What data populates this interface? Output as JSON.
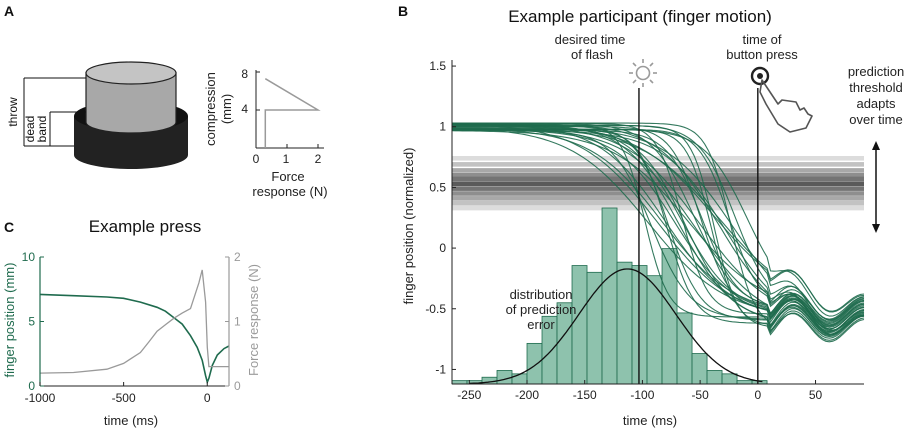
{
  "panels": {
    "a": {
      "letter": "A",
      "labels": {
        "throw": "throw",
        "dead": "dead",
        "band": "band"
      },
      "mini_chart": {
        "ylabel_line1": "compression",
        "ylabel_line2": "(mm)",
        "xlabel_line1": "Force",
        "xlabel_line2": "response (N)",
        "xticks": [
          "0",
          "1",
          "2"
        ],
        "yticks": [
          "4",
          "8"
        ]
      }
    },
    "b": {
      "letter": "B",
      "title": "Example participant (finger motion)",
      "annotations": {
        "flash_line1": "desired time",
        "flash_line2": "of flash",
        "press_line1": "time of",
        "press_line2": "button press",
        "threshold_line1": "prediction",
        "threshold_line2": "threshold",
        "threshold_line3": "adapts",
        "threshold_line4": "over time",
        "dist_line1": "distribution",
        "dist_line2": "of prediction",
        "dist_line3": "error"
      }
    },
    "c": {
      "letter": "C",
      "title": "Example press"
    }
  },
  "colors": {
    "green": "#1f6b4e",
    "hist_fill": "#8ec2ad",
    "gray": "#9a9a9a",
    "cylinder_top": "#a9a9a9",
    "cylinder_base": "#222222"
  },
  "chart_data": [
    {
      "id": "panel-a-inset",
      "type": "line",
      "xlabel": "Force response (N)",
      "ylabel": "compression (mm)",
      "xlim": [
        0,
        2
      ],
      "ylim": [
        0,
        8
      ],
      "xticks": [
        0,
        1,
        2
      ],
      "yticks": [
        4,
        8
      ],
      "series": [
        {
          "name": "force-compression",
          "x": [
            0.3,
            0.3,
            2.0,
            0.3
          ],
          "y": [
            0,
            4,
            4,
            7.3
          ]
        }
      ]
    },
    {
      "id": "panel-b",
      "type": "line",
      "title": "Example participant (finger motion)",
      "xlabel": "time (ms)",
      "ylabel": "finger position (normalized)",
      "xlim": [
        -265,
        92
      ],
      "ylim": [
        -1.12,
        1.55
      ],
      "xticks": [
        -250,
        -200,
        -150,
        -100,
        -50,
        0,
        50
      ],
      "yticks": [
        -1,
        -0.5,
        0,
        0.5,
        1,
        1.5
      ],
      "flash_time_ms": -103,
      "press_time_ms": 0,
      "thresholds": [
        0.74,
        0.69,
        0.64,
        0.6,
        0.57,
        0.53,
        0.49,
        0.45,
        0.41,
        0.37,
        0.33
      ],
      "traces": {
        "count": 30,
        "start_value": 1.0,
        "end_values": [
          -0.62,
          -0.68,
          -0.42
        ],
        "oscillation_peak_ms": 45,
        "note": "finger position traces aligned to button press"
      },
      "histogram": {
        "bin_edges": [
          -265,
          -252,
          -239,
          -226,
          -213,
          -200,
          -187,
          -174,
          -161,
          -148,
          -135,
          -122,
          -109,
          -96,
          -83,
          -70,
          -57,
          -44,
          -31,
          -18,
          -5,
          8
        ],
        "counts": [
          1,
          1,
          2,
          4,
          3,
          12,
          20,
          24,
          35,
          33,
          52,
          36,
          35,
          32,
          40,
          21,
          9,
          4,
          3,
          1,
          1
        ],
        "gaussian_mean_ms": -113,
        "gaussian_sd_ms": 42,
        "gaussian_peak": 34
      }
    },
    {
      "id": "panel-c",
      "type": "line",
      "title": "Example press",
      "xlabel": "time (ms)",
      "ylabel": "finger position (mm)",
      "y2label": "Force response (N)",
      "xlim": [
        -1000,
        130
      ],
      "ylim": [
        0,
        10
      ],
      "y2lim": [
        0,
        2
      ],
      "xticks": [
        -1000,
        -500,
        0
      ],
      "yticks": [
        0,
        5,
        10
      ],
      "y2ticks": [
        0,
        1,
        2
      ],
      "series": [
        {
          "name": "finger position (mm)",
          "axis": "left",
          "x": [
            -1000,
            -800,
            -600,
            -500,
            -400,
            -300,
            -250,
            -200,
            -150,
            -100,
            -60,
            -30,
            -10,
            0,
            10,
            30,
            60,
            100,
            130
          ],
          "y": [
            7.1,
            7.0,
            6.9,
            6.8,
            6.5,
            6.1,
            5.8,
            5.3,
            4.8,
            3.9,
            3.0,
            2.0,
            0.8,
            0.3,
            0.6,
            1.6,
            2.4,
            2.9,
            3.1
          ]
        },
        {
          "name": "Force response (N)",
          "axis": "right",
          "x": [
            -1000,
            -800,
            -600,
            -500,
            -400,
            -350,
            -300,
            -250,
            -200,
            -150,
            -100,
            -50,
            -30,
            -10,
            0,
            10,
            30,
            60,
            100,
            130
          ],
          "y": [
            0.2,
            0.21,
            0.26,
            0.35,
            0.52,
            0.68,
            0.85,
            0.95,
            1.05,
            1.13,
            1.2,
            1.6,
            1.8,
            1.3,
            0.6,
            0.3,
            0.3,
            0.3,
            0.3,
            0.3
          ]
        }
      ]
    }
  ]
}
